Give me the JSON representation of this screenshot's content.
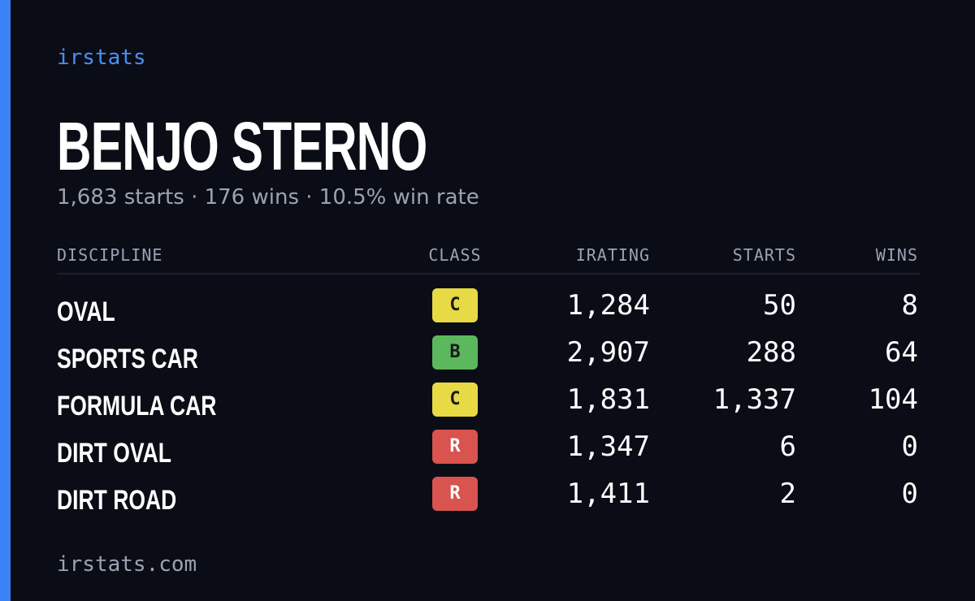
{
  "brand": "irstats",
  "driver": {
    "name": "BENJO STERNO",
    "summary": "1,683 starts · 176 wins · 10.5% win rate"
  },
  "table": {
    "headers": [
      "DISCIPLINE",
      "CLASS",
      "IRATING",
      "STARTS",
      "WINS"
    ],
    "rows": [
      {
        "discipline": "OVAL",
        "class": "C",
        "class_color": "#e8da45",
        "irating": "1,284",
        "starts": "50",
        "wins": "8"
      },
      {
        "discipline": "SPORTS CAR",
        "class": "B",
        "class_color": "#5cb85c",
        "irating": "2,907",
        "starts": "288",
        "wins": "64"
      },
      {
        "discipline": "FORMULA CAR",
        "class": "C",
        "class_color": "#e8da45",
        "irating": "1,831",
        "starts": "1,337",
        "wins": "104"
      },
      {
        "discipline": "DIRT OVAL",
        "class": "R",
        "class_color": "#d9534f",
        "irating": "1,347",
        "starts": "6",
        "wins": "0"
      },
      {
        "discipline": "DIRT ROAD",
        "class": "R",
        "class_color": "#d9534f",
        "irating": "1,411",
        "starts": "2",
        "wins": "0"
      }
    ]
  },
  "footer": "irstats.com"
}
